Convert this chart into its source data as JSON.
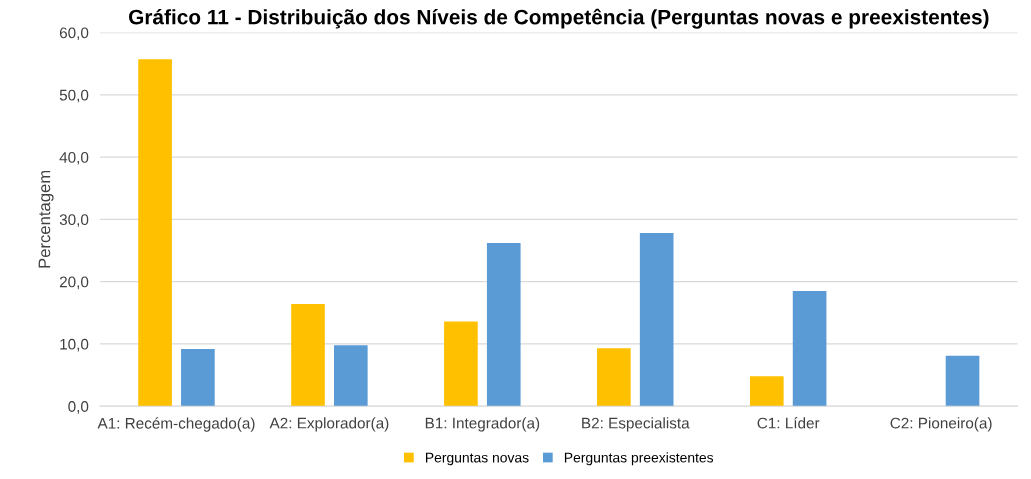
{
  "chart_data": {
    "type": "bar",
    "title": "Gráfico 11 - Distribuição dos Níveis de Competência (Perguntas novas e preexistentes)",
    "ylabel": "Percentagem",
    "categories": [
      "A1: Recém-chegado(a)",
      "A2: Explorador(a)",
      "B1: Integrador(a)",
      "B2: Especialista",
      "C1: Líder",
      "C2: Pioneiro(a)"
    ],
    "series": [
      {
        "name": "Perguntas novas",
        "color": "#ffc000",
        "values": [
          55.7,
          16.4,
          13.6,
          9.3,
          4.8,
          0.0
        ]
      },
      {
        "name": "Perguntas preexistentes",
        "color": "#5b9bd5",
        "values": [
          9.2,
          9.8,
          26.2,
          27.8,
          18.5,
          8.1
        ]
      }
    ],
    "ylim": [
      0,
      60
    ],
    "yticks": [
      {
        "value": 0,
        "label": "0,0"
      },
      {
        "value": 10,
        "label": "10,0"
      },
      {
        "value": 20,
        "label": "20,0"
      },
      {
        "value": 30,
        "label": "30,0"
      },
      {
        "value": 40,
        "label": "40,0"
      },
      {
        "value": 50,
        "label": "50,0"
      },
      {
        "value": 60,
        "label": "60,0"
      }
    ],
    "grid": "y",
    "legend": "bottom"
  }
}
